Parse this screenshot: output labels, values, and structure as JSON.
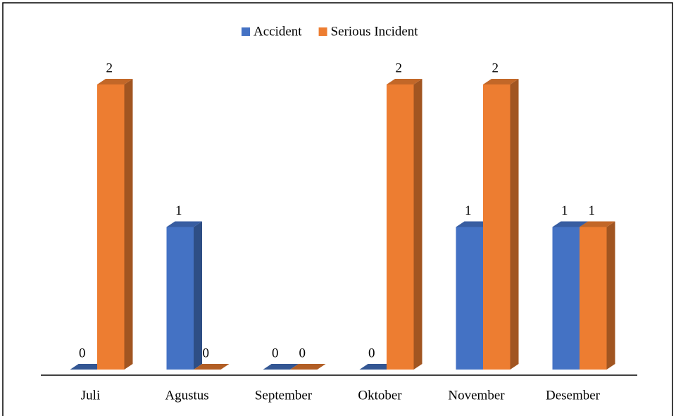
{
  "chart_data": {
    "type": "bar3d",
    "categories": [
      "Juli",
      "Agustus",
      "September",
      "Oktober",
      "November",
      "Desember"
    ],
    "series": [
      {
        "name": "Accident",
        "color": "#4472c4",
        "values": [
          0,
          1,
          0,
          0,
          1,
          1
        ]
      },
      {
        "name": "Serious Incident",
        "color": "#ed7d31",
        "values": [
          2,
          0,
          0,
          2,
          2,
          1
        ]
      }
    ],
    "ylim": [
      0,
      2
    ],
    "legend": "top"
  }
}
